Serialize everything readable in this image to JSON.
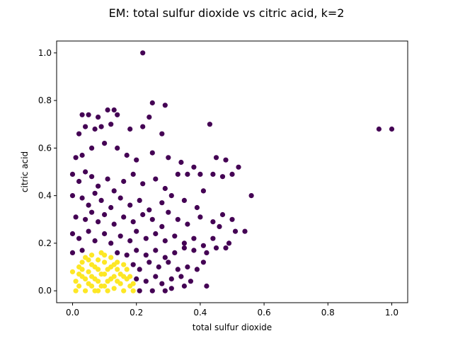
{
  "chart_data": {
    "type": "scatter",
    "title": "EM: total sulfur dioxide vs citric acid, k=2",
    "xlabel": "total sulfur dioxide",
    "ylabel": "citric acid",
    "xlim": [
      -0.05,
      1.05
    ],
    "ylim": [
      -0.05,
      1.05
    ],
    "xticks": [
      "0.0",
      "0.2",
      "0.4",
      "0.6",
      "0.8",
      "1.0"
    ],
    "yticks": [
      "0.0",
      "0.2",
      "0.4",
      "0.6",
      "0.8",
      "1.0"
    ],
    "grid": false,
    "legend": "none",
    "colors": {
      "cluster_0": "#440154",
      "cluster_1": "#fde725"
    },
    "series": [
      {
        "color": "#440154",
        "points": [
          [
            0.22,
            1.0
          ],
          [
            0.25,
            0.79
          ],
          [
            0.29,
            0.78
          ],
          [
            0.96,
            0.68
          ],
          [
            1.0,
            0.68
          ],
          [
            0.43,
            0.7
          ],
          [
            0.56,
            0.4
          ],
          [
            0.03,
            0.74
          ],
          [
            0.05,
            0.74
          ],
          [
            0.08,
            0.73
          ],
          [
            0.11,
            0.76
          ],
          [
            0.13,
            0.76
          ],
          [
            0.14,
            0.74
          ],
          [
            0.24,
            0.73
          ],
          [
            0.02,
            0.66
          ],
          [
            0.04,
            0.69
          ],
          [
            0.07,
            0.68
          ],
          [
            0.09,
            0.69
          ],
          [
            0.12,
            0.7
          ],
          [
            0.18,
            0.68
          ],
          [
            0.22,
            0.69
          ],
          [
            0.28,
            0.66
          ],
          [
            0.01,
            0.56
          ],
          [
            0.03,
            0.57
          ],
          [
            0.06,
            0.6
          ],
          [
            0.1,
            0.62
          ],
          [
            0.14,
            0.6
          ],
          [
            0.17,
            0.57
          ],
          [
            0.2,
            0.55
          ],
          [
            0.25,
            0.58
          ],
          [
            0.3,
            0.56
          ],
          [
            0.34,
            0.54
          ],
          [
            0.38,
            0.52
          ],
          [
            0.45,
            0.56
          ],
          [
            0.48,
            0.55
          ],
          [
            0.0,
            0.49
          ],
          [
            0.02,
            0.46
          ],
          [
            0.04,
            0.5
          ],
          [
            0.06,
            0.48
          ],
          [
            0.08,
            0.44
          ],
          [
            0.11,
            0.47
          ],
          [
            0.13,
            0.42
          ],
          [
            0.16,
            0.46
          ],
          [
            0.19,
            0.49
          ],
          [
            0.22,
            0.45
          ],
          [
            0.26,
            0.47
          ],
          [
            0.29,
            0.43
          ],
          [
            0.33,
            0.49
          ],
          [
            0.36,
            0.49
          ],
          [
            0.4,
            0.49
          ],
          [
            0.44,
            0.49
          ],
          [
            0.47,
            0.48
          ],
          [
            0.5,
            0.49
          ],
          [
            0.52,
            0.52
          ],
          [
            0.0,
            0.4
          ],
          [
            0.03,
            0.39
          ],
          [
            0.05,
            0.36
          ],
          [
            0.07,
            0.41
          ],
          [
            0.09,
            0.38
          ],
          [
            0.12,
            0.35
          ],
          [
            0.15,
            0.39
          ],
          [
            0.18,
            0.36
          ],
          [
            0.21,
            0.38
          ],
          [
            0.24,
            0.34
          ],
          [
            0.28,
            0.37
          ],
          [
            0.31,
            0.4
          ],
          [
            0.35,
            0.38
          ],
          [
            0.39,
            0.35
          ],
          [
            0.41,
            0.42
          ],
          [
            0.01,
            0.31
          ],
          [
            0.04,
            0.3
          ],
          [
            0.06,
            0.33
          ],
          [
            0.08,
            0.29
          ],
          [
            0.1,
            0.32
          ],
          [
            0.13,
            0.28
          ],
          [
            0.16,
            0.31
          ],
          [
            0.19,
            0.29
          ],
          [
            0.22,
            0.32
          ],
          [
            0.25,
            0.3
          ],
          [
            0.28,
            0.27
          ],
          [
            0.3,
            0.33
          ],
          [
            0.33,
            0.3
          ],
          [
            0.36,
            0.28
          ],
          [
            0.4,
            0.31
          ],
          [
            0.44,
            0.29
          ],
          [
            0.47,
            0.32
          ],
          [
            0.5,
            0.3
          ],
          [
            0.51,
            0.25
          ],
          [
            0.54,
            0.25
          ],
          [
            0.0,
            0.24
          ],
          [
            0.02,
            0.22
          ],
          [
            0.05,
            0.25
          ],
          [
            0.07,
            0.21
          ],
          [
            0.1,
            0.24
          ],
          [
            0.12,
            0.2
          ],
          [
            0.15,
            0.23
          ],
          [
            0.18,
            0.21
          ],
          [
            0.2,
            0.25
          ],
          [
            0.23,
            0.22
          ],
          [
            0.26,
            0.24
          ],
          [
            0.29,
            0.21
          ],
          [
            0.32,
            0.23
          ],
          [
            0.35,
            0.2
          ],
          [
            0.38,
            0.22
          ],
          [
            0.41,
            0.19
          ],
          [
            0.44,
            0.22
          ],
          [
            0.46,
            0.27
          ],
          [
            0.49,
            0.2
          ],
          [
            0.0,
            0.16
          ],
          [
            0.03,
            0.17
          ],
          [
            0.14,
            0.16
          ],
          [
            0.17,
            0.15
          ],
          [
            0.2,
            0.17
          ],
          [
            0.23,
            0.15
          ],
          [
            0.26,
            0.17
          ],
          [
            0.29,
            0.14
          ],
          [
            0.32,
            0.16
          ],
          [
            0.35,
            0.18
          ],
          [
            0.38,
            0.17
          ],
          [
            0.42,
            0.16
          ],
          [
            0.45,
            0.18
          ],
          [
            0.48,
            0.18
          ],
          [
            0.19,
            0.11
          ],
          [
            0.21,
            0.09
          ],
          [
            0.24,
            0.12
          ],
          [
            0.27,
            0.1
          ],
          [
            0.3,
            0.12
          ],
          [
            0.33,
            0.09
          ],
          [
            0.36,
            0.1
          ],
          [
            0.39,
            0.09
          ],
          [
            0.41,
            0.12
          ],
          [
            0.2,
            0.05
          ],
          [
            0.23,
            0.04
          ],
          [
            0.26,
            0.06
          ],
          [
            0.28,
            0.03
          ],
          [
            0.31,
            0.05
          ],
          [
            0.34,
            0.06
          ],
          [
            0.37,
            0.04
          ],
          [
            0.21,
            0.0
          ],
          [
            0.25,
            0.0
          ],
          [
            0.29,
            0.0
          ],
          [
            0.31,
            0.01
          ],
          [
            0.35,
            0.02
          ],
          [
            0.42,
            0.02
          ]
        ]
      },
      {
        "color": "#fde725",
        "points": [
          [
            0.0,
            0.08
          ],
          [
            0.01,
            0.04
          ],
          [
            0.01,
            0.0
          ],
          [
            0.02,
            0.1
          ],
          [
            0.02,
            0.02
          ],
          [
            0.03,
            0.12
          ],
          [
            0.03,
            0.06
          ],
          [
            0.04,
            0.0
          ],
          [
            0.04,
            0.14
          ],
          [
            0.05,
            0.08
          ],
          [
            0.05,
            0.03
          ],
          [
            0.06,
            0.15
          ],
          [
            0.06,
            0.11
          ],
          [
            0.07,
            0.05
          ],
          [
            0.07,
            0.0
          ],
          [
            0.08,
            0.13
          ],
          [
            0.08,
            0.09
          ],
          [
            0.09,
            0.02
          ],
          [
            0.09,
            0.16
          ],
          [
            0.1,
            0.07
          ],
          [
            0.1,
            0.12
          ],
          [
            0.11,
            0.0
          ],
          [
            0.11,
            0.04
          ],
          [
            0.12,
            0.1
          ],
          [
            0.12,
            0.14
          ],
          [
            0.13,
            0.06
          ],
          [
            0.13,
            0.01
          ],
          [
            0.14,
            0.12
          ],
          [
            0.14,
            0.09
          ],
          [
            0.15,
            0.03
          ],
          [
            0.15,
            0.07
          ],
          [
            0.16,
            0.11
          ],
          [
            0.16,
            0.0
          ],
          [
            0.17,
            0.05
          ],
          [
            0.17,
            0.09
          ],
          [
            0.18,
            0.02
          ],
          [
            0.18,
            0.06
          ],
          [
            0.19,
            0.0
          ],
          [
            0.19,
            0.03
          ],
          [
            0.05,
            0.13
          ],
          [
            0.07,
            0.1
          ],
          [
            0.09,
            0.07
          ],
          [
            0.11,
            0.09
          ],
          [
            0.13,
            0.11
          ],
          [
            0.03,
            0.09
          ],
          [
            0.06,
            0.06
          ],
          [
            0.08,
            0.04
          ],
          [
            0.1,
            0.02
          ],
          [
            0.12,
            0.05
          ],
          [
            0.14,
            0.04
          ],
          [
            0.16,
            0.06
          ],
          [
            0.04,
            0.05
          ],
          [
            0.02,
            0.07
          ],
          [
            0.06,
            0.02
          ],
          [
            0.08,
            0.0
          ],
          [
            0.1,
            0.15
          ]
        ]
      }
    ]
  }
}
